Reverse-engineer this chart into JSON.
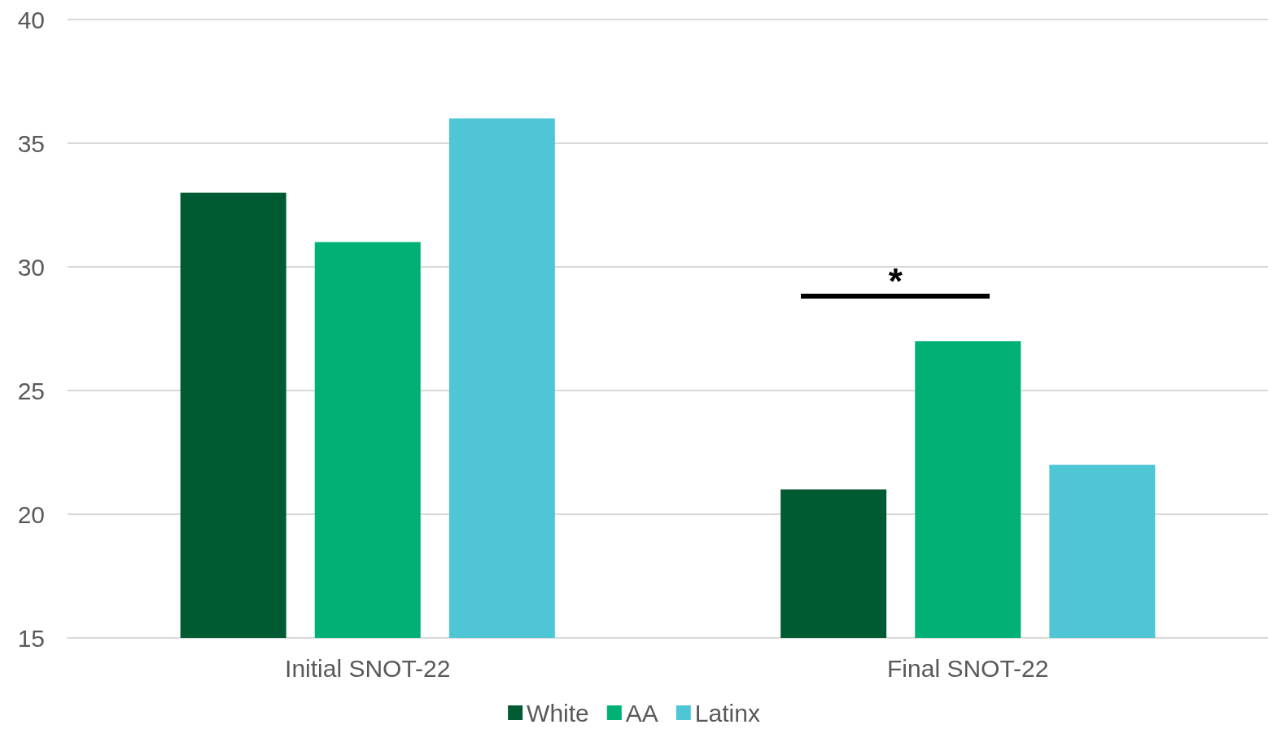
{
  "chart_data": {
    "type": "bar",
    "categories": [
      "Initial SNOT-22",
      "Final SNOT-22"
    ],
    "series": [
      {
        "name": "White",
        "color": "#005a32",
        "values": [
          33,
          21
        ]
      },
      {
        "name": "AA",
        "color": "#00b074",
        "values": [
          31,
          27
        ]
      },
      {
        "name": "Latinx",
        "color": "#4fc6d6",
        "values": [
          36,
          22
        ]
      }
    ],
    "ylim": [
      15,
      40
    ],
    "yticks": [
      15,
      20,
      25,
      30,
      35,
      40
    ],
    "grid": "y",
    "legend": "bottom",
    "annotations": [
      "*"
    ]
  }
}
